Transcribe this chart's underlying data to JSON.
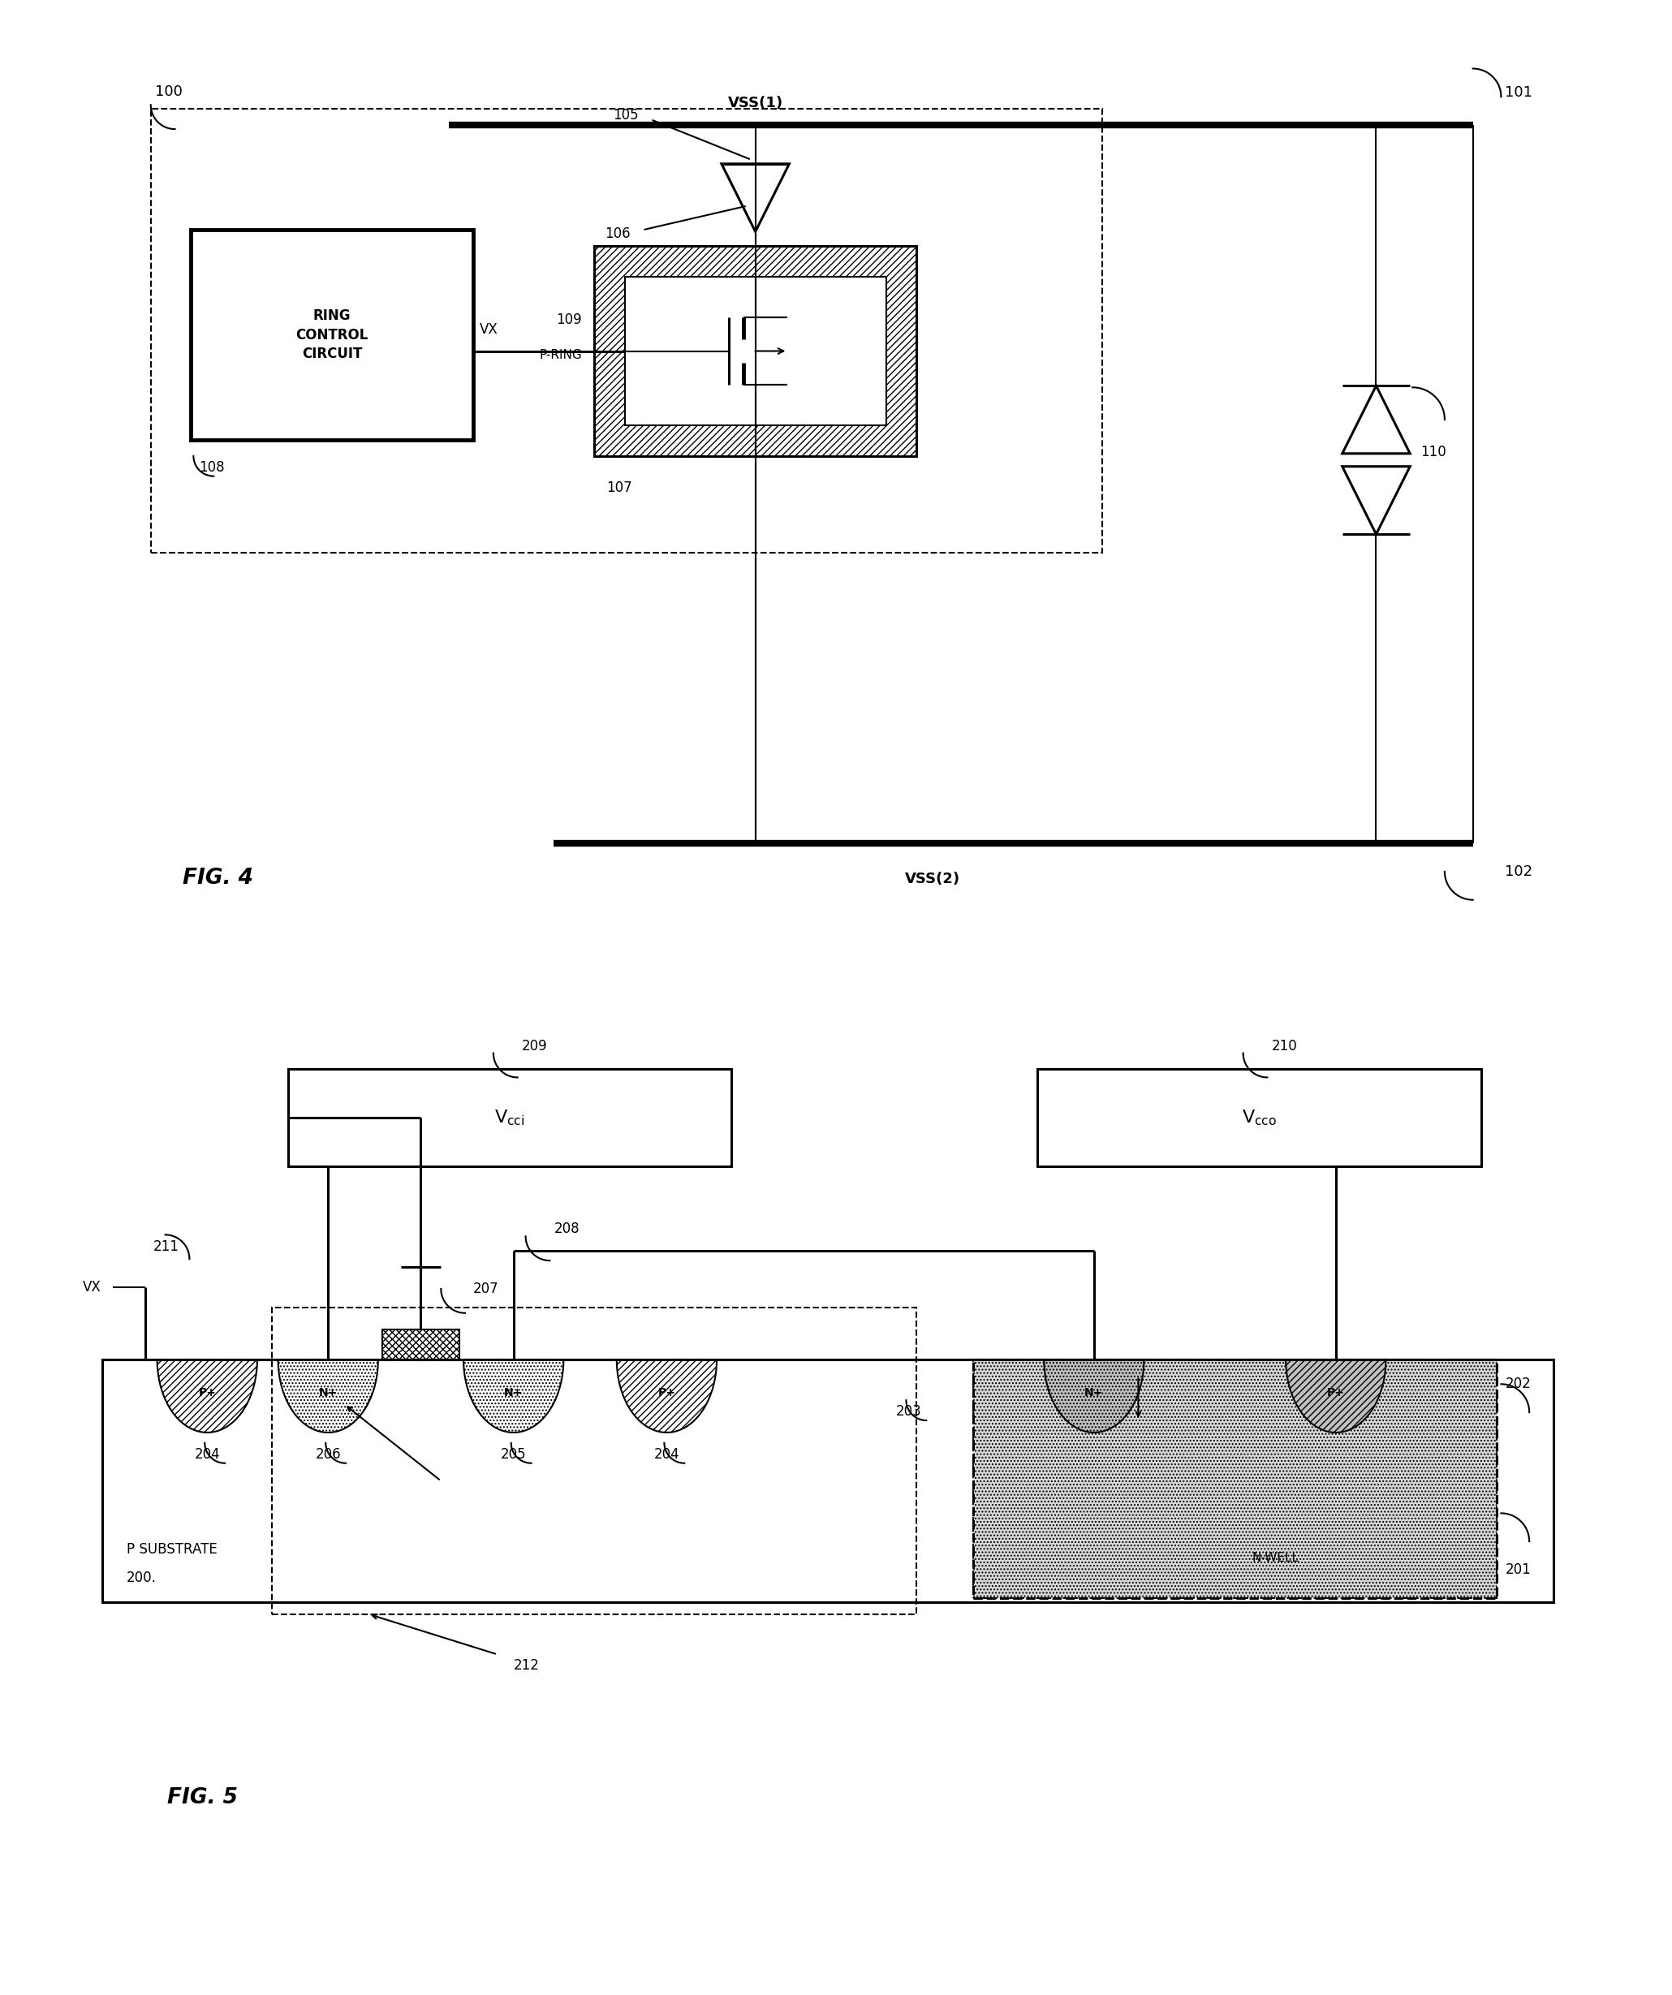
{
  "fig_width": 20.6,
  "fig_height": 24.58,
  "bg_color": "#ffffff",
  "fig4": {
    "vss1_label": "VSS(1)",
    "vss2_label": "VSS(2)",
    "label_101": "101",
    "label_102": "102",
    "label_100": "100",
    "label_105": "105",
    "label_106": "106",
    "label_107": "107",
    "label_108": "108",
    "label_109": "109",
    "label_110": "110",
    "label_vx": "VX",
    "label_pring": "P-RING",
    "ring_control_text": "RING\nCONTROL\nCIRCUIT",
    "title": "FIG. 4"
  },
  "fig5": {
    "label_200": "200.",
    "label_201": "201",
    "label_202": "202",
    "label_203": "203",
    "label_204": "204",
    "label_205": "205",
    "label_206": "206",
    "label_207": "207",
    "label_208": "208",
    "label_209": "209",
    "label_210": "210",
    "label_211": "211",
    "label_212": "212",
    "label_vx": "VX",
    "label_psubstrate": "P SUBSTRATE",
    "label_nwell": "N-WELL",
    "title": "FIG. 5"
  }
}
